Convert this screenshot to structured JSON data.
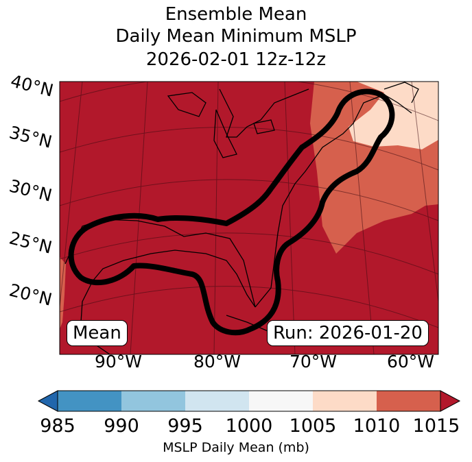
{
  "title": {
    "line1": "Ensemble Mean",
    "line2": "Daily Mean Minimum MSLP",
    "line3": "2026-02-01 12z-12z"
  },
  "map": {
    "lat_labels": [
      "40°N",
      "35°N",
      "30°N",
      "25°N",
      "20°N"
    ],
    "lon_labels": [
      "90°W",
      "80°W",
      "70°W",
      "60°W"
    ],
    "mean_box": "Mean",
    "run_box": "Run: 2026-01-20"
  },
  "colorbar": {
    "ticks": [
      "985",
      "990",
      "995",
      "1000",
      "1005",
      "1010",
      "1015"
    ],
    "label": "MSLP Daily Mean (mb)",
    "colors": [
      "#2166ac",
      "#4393c3",
      "#92c5de",
      "#d1e5f0",
      "#f7f7f7",
      "#fddbc7",
      "#d6604d",
      "#b2182b"
    ]
  }
}
